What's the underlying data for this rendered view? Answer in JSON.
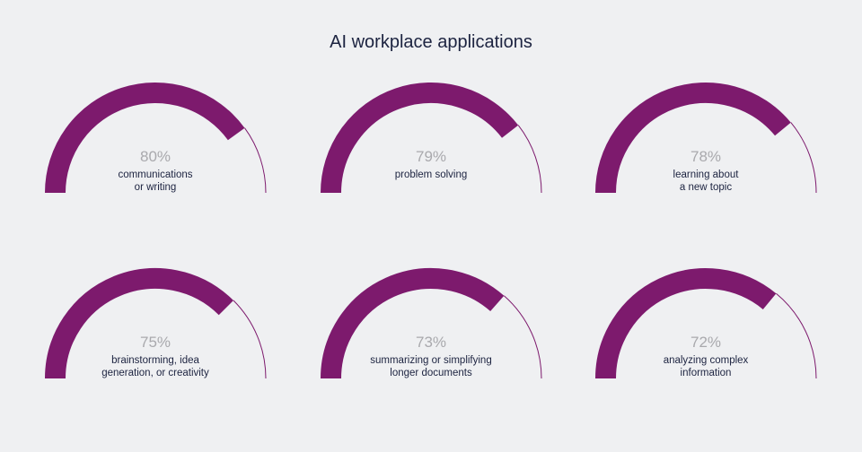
{
  "colors": {
    "fill": "#7d1a6d",
    "background": "#eff0f2",
    "percent_text": "#a9a9ad",
    "label_text": "#1c2340"
  },
  "chart_data": {
    "type": "gauge",
    "title": "AI workplace applications",
    "max": 100,
    "gauges": [
      {
        "value": 80,
        "value_label": "80%",
        "label_lines": [
          "communications",
          "or writing"
        ]
      },
      {
        "value": 79,
        "value_label": "79%",
        "label_lines": [
          "problem solving"
        ]
      },
      {
        "value": 78,
        "value_label": "78%",
        "label_lines": [
          "learning about",
          "a new topic"
        ]
      },
      {
        "value": 75,
        "value_label": "75%",
        "label_lines": [
          "brainstorming, idea",
          "generation, or creativity"
        ]
      },
      {
        "value": 73,
        "value_label": "73%",
        "label_lines": [
          "summarizing or simplifying",
          "longer documents"
        ]
      },
      {
        "value": 72,
        "value_label": "72%",
        "label_lines": [
          "analyzing complex",
          "information"
        ]
      }
    ]
  }
}
